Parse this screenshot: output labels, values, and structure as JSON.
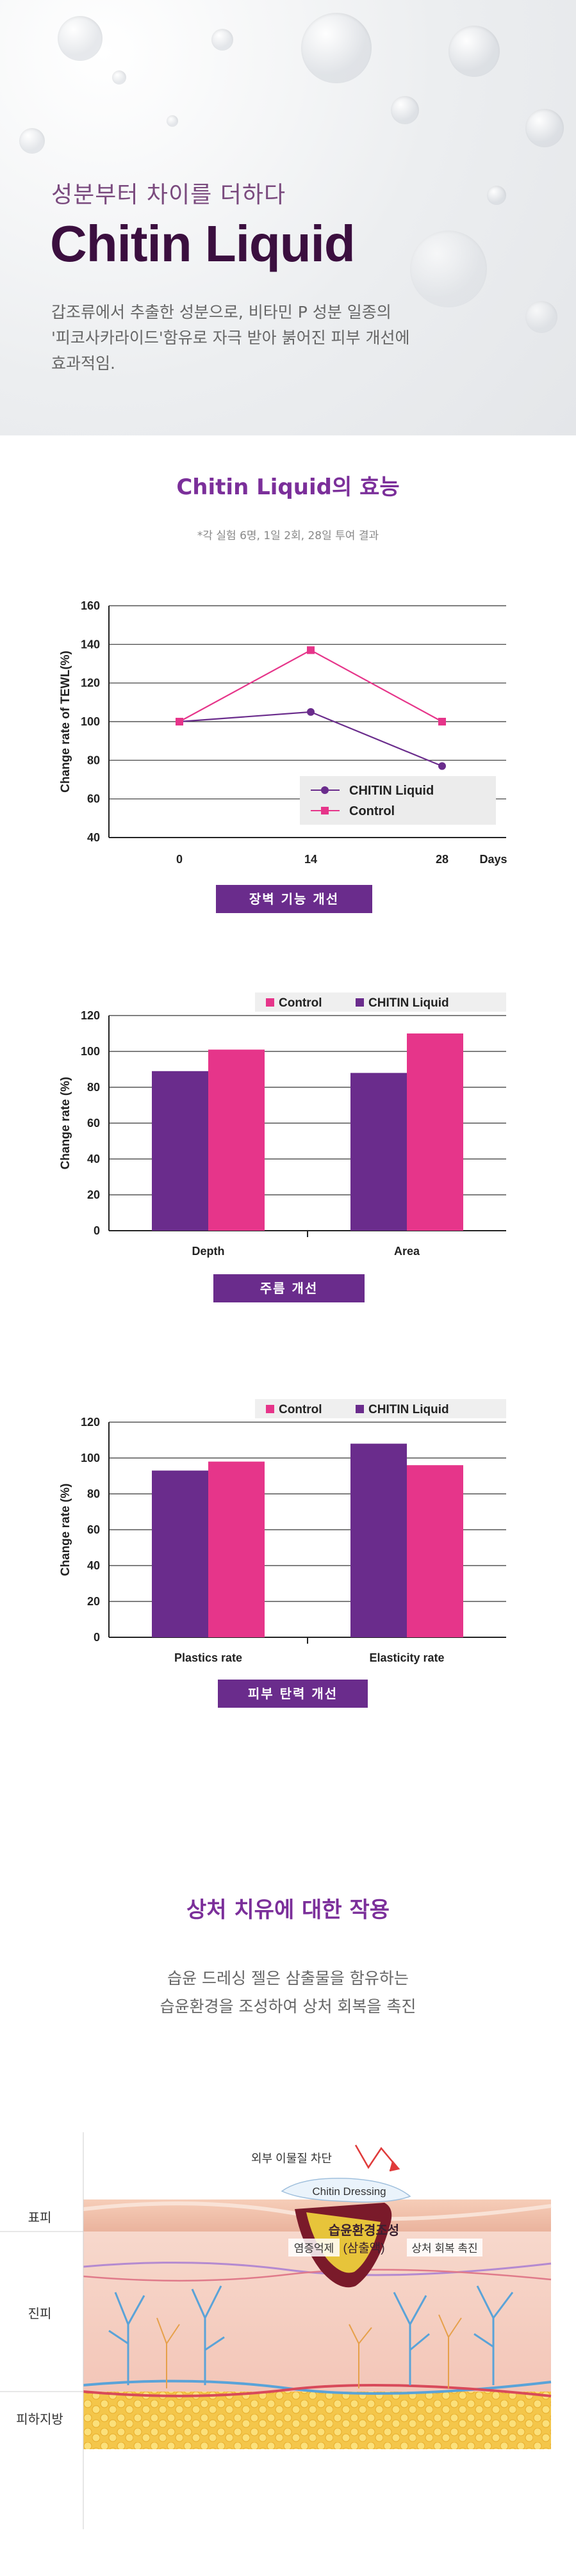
{
  "hero": {
    "subtitle": "성분부터 차이를 더하다",
    "title": "Chitin Liquid",
    "desc_line1": "갑조류에서 추출한 성분으로, 비타민 P 성분 일종의",
    "desc_line2": "'피코사카라이드'함유로 자극 받아 붉어진 피부 개선에",
    "desc_line3": "효과적임."
  },
  "efficacy": {
    "title": "Chitin Liquid의 효능",
    "note": "*각 실험 6명, 1일 2회, 28일 투여 결과"
  },
  "badges": {
    "barrier": "장벽 기능 개선",
    "wrinkle": "주름 개선",
    "elasticity": "피부 탄력 개선"
  },
  "healing": {
    "title": "상처 치유에 대한 작용",
    "line1": "습윤 드레싱 젤은 삼출물을 함유하는",
    "line2": "습윤환경을 조성하여 상처 회복을 촉진"
  },
  "diagram": {
    "label_epidermis": "표피",
    "label_dermis": "진피",
    "label_subcutis": "피하지방",
    "external_block": "외부 이물질 차단",
    "dressing": "Chitin Dressing",
    "moist_line1": "습윤환경조성",
    "moist_line2": "(삼출액)",
    "anti_inflam": "염증억제",
    "recovery": "상처 회복 촉진"
  },
  "colors": {
    "chitin": "#6a2c8c",
    "control": "#e6358a",
    "badge": "#6a2c8c",
    "title": "#3b0f3f"
  },
  "chart_data": [
    {
      "type": "line",
      "x": [
        0,
        14,
        28
      ],
      "xticks": [
        "0",
        "14",
        "28"
      ],
      "xunit": "Days",
      "ylabel": "Change rate of TEWL(%)",
      "ylim": [
        40,
        160
      ],
      "yticks": [
        40,
        60,
        80,
        100,
        120,
        140,
        160
      ],
      "grid": true,
      "legend": "bottom-right",
      "series": [
        {
          "name": "CHITIN Liquid",
          "color": "#6a2c8c",
          "marker": "circle",
          "values": [
            100,
            105,
            77
          ]
        },
        {
          "name": "Control",
          "color": "#e6358a",
          "marker": "square",
          "values": [
            100,
            137,
            100
          ]
        }
      ]
    },
    {
      "type": "bar",
      "categories": [
        "Depth",
        "Area"
      ],
      "ylabel": "Change rate (%)",
      "ylim": [
        0,
        120
      ],
      "yticks": [
        0,
        20,
        40,
        60,
        80,
        100,
        120
      ],
      "grid": true,
      "legend": "top-right",
      "legend_order": [
        "Control",
        "CHITIN Liquid"
      ],
      "series": [
        {
          "name": "CHITIN Liquid",
          "color": "#6a2c8c",
          "values": [
            89,
            88
          ]
        },
        {
          "name": "Control",
          "color": "#e6358a",
          "values": [
            101,
            110
          ]
        }
      ]
    },
    {
      "type": "bar",
      "categories": [
        "Plastics rate",
        "Elasticity rate"
      ],
      "ylabel": "Change rate (%)",
      "ylim": [
        0,
        120
      ],
      "yticks": [
        0,
        20,
        40,
        60,
        80,
        100,
        120
      ],
      "grid": true,
      "legend": "top-right",
      "legend_order": [
        "Control",
        "CHITIN Liquid"
      ],
      "series": [
        {
          "name": "CHITIN Liquid",
          "color": "#6a2c8c",
          "values": [
            93,
            108
          ]
        },
        {
          "name": "Control",
          "color": "#e6358a",
          "values": [
            98,
            96
          ]
        }
      ]
    }
  ]
}
